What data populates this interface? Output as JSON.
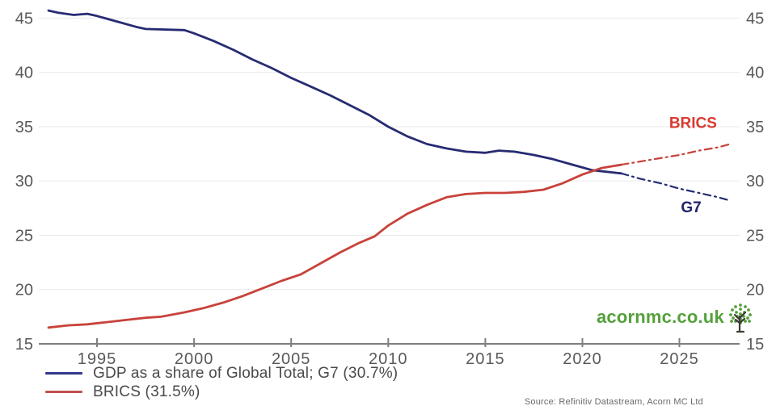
{
  "branding": {
    "site": "acornmc.co.uk",
    "color": "#55a03b",
    "trunk_color": "#3d3a33"
  },
  "source_note": "Source: Refinitiv Datastream, Acorn MC Ltd",
  "legend": {
    "items": [
      {
        "label": "GDP as a share of Global Total; G7 (30.7%)",
        "color": "#33388c"
      },
      {
        "label": "BRICS (31.5%)",
        "color": "#c0504d"
      }
    ]
  },
  "chart_data": {
    "type": "line",
    "title": "",
    "xlabel": "",
    "ylabel": "",
    "grid": true,
    "legend_position": "bottom-left",
    "colors": {
      "grid": "#ececec",
      "axis": "#7f7f7f",
      "tick_text": "#595959"
    },
    "x_axis": {
      "ticks": [
        1995,
        2000,
        2005,
        2010,
        2015,
        2020,
        2025
      ],
      "range": [
        1992,
        2028.1
      ]
    },
    "y_axis": {
      "ticks": [
        15,
        20,
        25,
        30,
        35,
        40,
        45
      ],
      "gridlines": [
        20,
        25,
        30,
        35,
        40,
        45
      ],
      "range": [
        15,
        46.3
      ],
      "sides": "both"
    },
    "series": [
      {
        "id": "g7-history",
        "name": "GDP as a share of Global Total; G7",
        "color": "#272b72",
        "style": "solid",
        "width": 2.8,
        "points": [
          [
            1992.5,
            45.7
          ],
          [
            1993,
            45.5
          ],
          [
            1993.8,
            45.3
          ],
          [
            1994.5,
            45.4
          ],
          [
            1995,
            45.2
          ],
          [
            1996,
            44.7
          ],
          [
            1997,
            44.2
          ],
          [
            1997.5,
            44.0
          ],
          [
            1999.5,
            43.9
          ],
          [
            2000,
            43.6
          ],
          [
            2001,
            42.9
          ],
          [
            2002,
            42.1
          ],
          [
            2003,
            41.2
          ],
          [
            2004,
            40.4
          ],
          [
            2005,
            39.5
          ],
          [
            2006,
            38.7
          ],
          [
            2007,
            37.9
          ],
          [
            2008,
            37.0
          ],
          [
            2009,
            36.1
          ],
          [
            2010,
            35.0
          ],
          [
            2011,
            34.1
          ],
          [
            2012,
            33.4
          ],
          [
            2013,
            33.0
          ],
          [
            2014,
            32.7
          ],
          [
            2015,
            32.6
          ],
          [
            2015.7,
            32.8
          ],
          [
            2016.5,
            32.7
          ],
          [
            2017.5,
            32.4
          ],
          [
            2018.5,
            32.0
          ],
          [
            2019.5,
            31.5
          ],
          [
            2020.5,
            31.0
          ],
          [
            2021.5,
            30.8
          ],
          [
            2022,
            30.7
          ]
        ]
      },
      {
        "id": "g7-forecast",
        "name": "G7 forecast",
        "color": "#272b72",
        "style": "dashdot",
        "width": 2.2,
        "points": [
          [
            2022,
            30.7
          ],
          [
            2023,
            30.2
          ],
          [
            2024,
            29.8
          ],
          [
            2025,
            29.3
          ],
          [
            2026,
            28.9
          ],
          [
            2027,
            28.5
          ],
          [
            2027.6,
            28.2
          ]
        ]
      },
      {
        "id": "brics-history",
        "name": "BRICS",
        "color": "#c8423a",
        "style": "solid",
        "width": 2.8,
        "points": [
          [
            1992.5,
            16.5
          ],
          [
            1993.5,
            16.7
          ],
          [
            1994.5,
            16.8
          ],
          [
            1995.5,
            17.0
          ],
          [
            1996.5,
            17.2
          ],
          [
            1997.5,
            17.4
          ],
          [
            1998.3,
            17.5
          ],
          [
            1999.5,
            17.9
          ],
          [
            2000.5,
            18.3
          ],
          [
            2001.5,
            18.8
          ],
          [
            2002.5,
            19.4
          ],
          [
            2003.5,
            20.1
          ],
          [
            2004.5,
            20.8
          ],
          [
            2005.5,
            21.4
          ],
          [
            2006.5,
            22.4
          ],
          [
            2007.5,
            23.4
          ],
          [
            2008.5,
            24.3
          ],
          [
            2009.3,
            24.9
          ],
          [
            2010,
            25.9
          ],
          [
            2011,
            27.0
          ],
          [
            2012,
            27.8
          ],
          [
            2013,
            28.5
          ],
          [
            2014,
            28.8
          ],
          [
            2015,
            28.9
          ],
          [
            2016,
            28.9
          ],
          [
            2017,
            29.0
          ],
          [
            2018,
            29.2
          ],
          [
            2019,
            29.8
          ],
          [
            2020,
            30.6
          ],
          [
            2021,
            31.2
          ],
          [
            2022,
            31.5
          ]
        ]
      },
      {
        "id": "brics-forecast",
        "name": "BRICS forecast",
        "color": "#c8423a",
        "style": "dashdot",
        "width": 2.2,
        "points": [
          [
            2022,
            31.5
          ],
          [
            2023,
            31.8
          ],
          [
            2024,
            32.1
          ],
          [
            2025,
            32.4
          ],
          [
            2026,
            32.8
          ],
          [
            2027,
            33.1
          ],
          [
            2027.6,
            33.4
          ]
        ]
      }
    ],
    "annotations": [
      {
        "id": "brics-label",
        "text": "BRICS",
        "x": 2025.7,
        "y": 34.9,
        "color": "#d93a31"
      },
      {
        "id": "g7-label",
        "text": "G7",
        "x": 2025.6,
        "y": 27.1,
        "color": "#1f2468"
      }
    ]
  }
}
